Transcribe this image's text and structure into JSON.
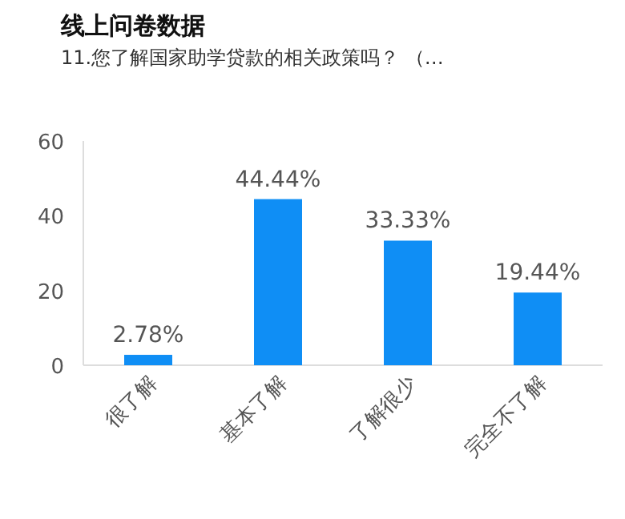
{
  "chart_data": {
    "type": "bar",
    "title": "线上问卷数据",
    "subtitle": "11.您了解国家助学贷款的相关政策吗？ （…",
    "categories": [
      "很了解",
      "基本了解",
      "了解很少",
      "完全不了解"
    ],
    "values": [
      2.78,
      44.44,
      33.33,
      19.44
    ],
    "value_labels": [
      "2.78%",
      "44.44%",
      "33.33%",
      "19.44%"
    ],
    "color": "#0f8ef5",
    "ylim": [
      0,
      60
    ],
    "yticks": [
      0,
      20,
      40,
      60
    ]
  }
}
